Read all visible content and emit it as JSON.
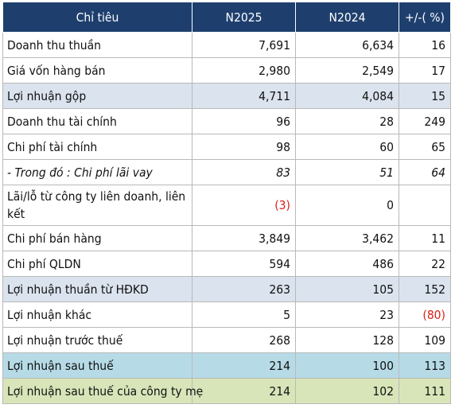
{
  "table": {
    "headers": [
      "Chỉ tiêu",
      "N2025",
      "N2024",
      "+/-( %)"
    ],
    "rows": [
      {
        "label": "Doanh thu thuần",
        "n2025": "7,691",
        "n2024": "6,634",
        "change": "16"
      },
      {
        "label": "Giá vốn hàng bán",
        "n2025": "2,980",
        "n2024": "2,549",
        "change": "17"
      },
      {
        "label": "Lợi nhuận gộp",
        "n2025": "4,711",
        "n2024": "4,084",
        "change": "15"
      },
      {
        "label": "Doanh thu tài chính",
        "n2025": "96",
        "n2024": "28",
        "change": "249"
      },
      {
        "label": "Chi phí tài chính",
        "n2025": "98",
        "n2024": "60",
        "change": "65"
      },
      {
        "label": "- Trong đó : Chi phí lãi vay",
        "n2025": "83",
        "n2024": "51",
        "change": "64"
      },
      {
        "label": "Lãi/lỗ từ công ty liên doanh, liên kết",
        "n2025": "(3)",
        "n2024": "0",
        "change": ""
      },
      {
        "label": "Chi phí bán hàng",
        "n2025": "3,849",
        "n2024": "3,462",
        "change": "11"
      },
      {
        "label": "Chi phí QLDN",
        "n2025": "594",
        "n2024": "486",
        "change": "22"
      },
      {
        "label": "Lợi nhuận thuần từ HĐKD",
        "n2025": "263",
        "n2024": "105",
        "change": "152"
      },
      {
        "label": "Lợi nhuận khác",
        "n2025": "5",
        "n2024": "23",
        "change": "(80)"
      },
      {
        "label": "Lợi nhuận trước thuế",
        "n2025": "268",
        "n2024": "128",
        "change": "109"
      },
      {
        "label": "Lợi nhuận sau thuế",
        "n2025": "214",
        "n2024": "100",
        "change": "113"
      },
      {
        "label": "Lợi nhuận sau thuế của công ty mẹ",
        "n2025": "214",
        "n2024": "102",
        "change": "111"
      }
    ]
  },
  "colors": {
    "header_bg": "#1e3f6e",
    "highlight_grey": "#dbe3ee",
    "highlight_blue": "#b6dbe6",
    "highlight_green": "#d8e5b9",
    "negative": "#d8201c"
  }
}
